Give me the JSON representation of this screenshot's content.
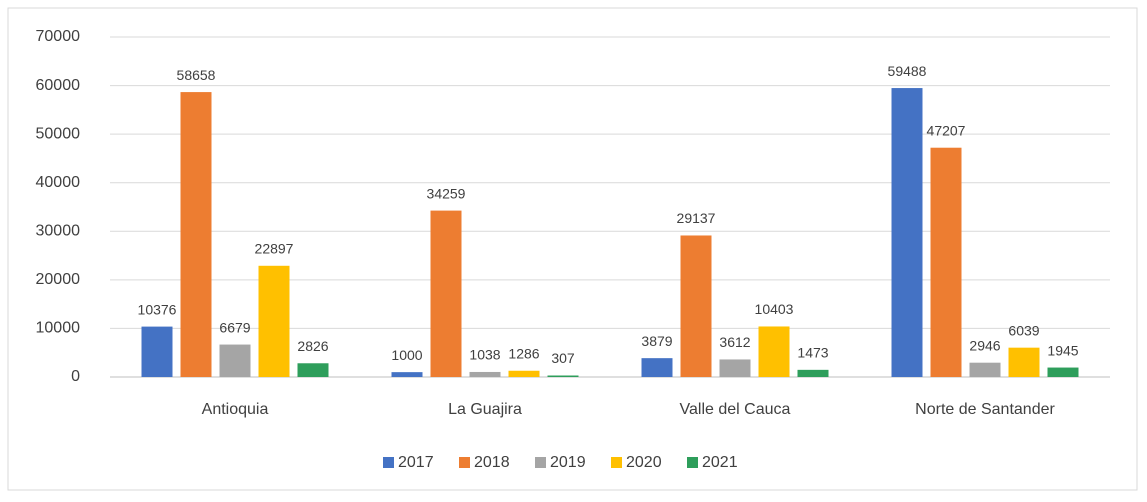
{
  "chart_data": {
    "type": "bar",
    "categories": [
      "Antioquia",
      "La Guajira",
      "Valle del Cauca",
      "Norte de Santander"
    ],
    "series": [
      {
        "name": "2017",
        "color": "#4472c4",
        "values": [
          10376,
          1000,
          3879,
          59488
        ]
      },
      {
        "name": "2018",
        "color": "#ed7d31",
        "values": [
          58658,
          34259,
          29137,
          47207
        ]
      },
      {
        "name": "2019",
        "color": "#a5a5a5",
        "values": [
          6679,
          1038,
          3612,
          2946
        ]
      },
      {
        "name": "2020",
        "color": "#ffc000",
        "values": [
          22897,
          1286,
          10403,
          6039
        ]
      },
      {
        "name": "2021",
        "color": "#2e9e5b",
        "values": [
          2826,
          307,
          1473,
          1945
        ]
      }
    ],
    "ylim": [
      0,
      70000
    ],
    "yticks": [
      0,
      10000,
      20000,
      30000,
      40000,
      50000,
      60000,
      70000
    ],
    "grid": true,
    "legend": "bottom"
  }
}
